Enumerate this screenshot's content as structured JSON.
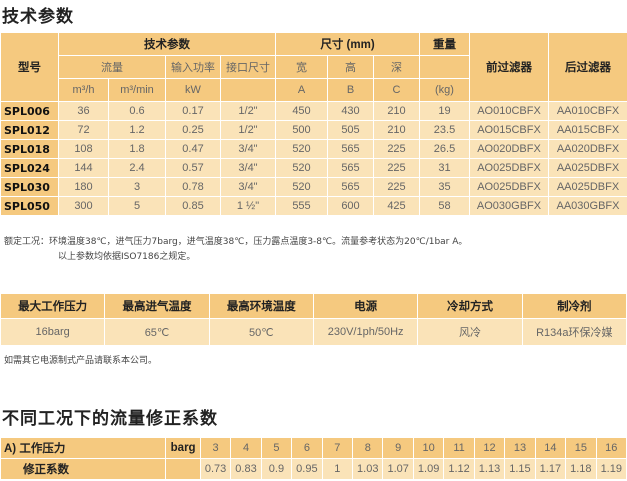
{
  "section1": {
    "title": "技术参数",
    "header": {
      "model": "型号",
      "tech": "技术参数",
      "dims": "尺寸 (mm)",
      "weight": "重量",
      "flow": "流量",
      "power": "输入功率",
      "conn": "接口尺寸",
      "width": "宽",
      "height": "高",
      "depth": "深",
      "prefilter": "前过滤器",
      "afterfilter": "后过滤器",
      "u_m3h": "m³/h",
      "u_m3min": "m³/min",
      "u_kw": "kW",
      "u_a": "A",
      "u_b": "B",
      "u_c": "C",
      "u_kg": "(kg)"
    },
    "rows": [
      [
        "SPL006",
        "36",
        "0.6",
        "0.17",
        "1/2\"",
        "450",
        "430",
        "210",
        "19",
        "AO010CBFX",
        "AA010CBFX"
      ],
      [
        "SPL012",
        "72",
        "1.2",
        "0.25",
        "1/2\"",
        "500",
        "505",
        "210",
        "23.5",
        "AO015CBFX",
        "AA015CBFX"
      ],
      [
        "SPL018",
        "108",
        "1.8",
        "0.47",
        "3/4\"",
        "520",
        "565",
        "225",
        "26.5",
        "AO020DBFX",
        "AA020DBFX"
      ],
      [
        "SPL024",
        "144",
        "2.4",
        "0.57",
        "3/4\"",
        "520",
        "565",
        "225",
        "31",
        "AO025DBFX",
        "AA025DBFX"
      ],
      [
        "SPL030",
        "180",
        "3",
        "0.78",
        "3/4\"",
        "520",
        "565",
        "225",
        "35",
        "AO025DBFX",
        "AA025DBFX"
      ],
      [
        "SPL050",
        "300",
        "5",
        "0.85",
        "1 ½\"",
        "555",
        "600",
        "425",
        "58",
        "AO030GBFX",
        "AA030GBFX"
      ]
    ],
    "note1": "额定工况：环境温度38℃，进气压力7barg，进气温度38℃，压力露点温度3-8℃。流量参考状态为20℃/1bar A。",
    "note2": "以上参数均依据ISO7186之规定。"
  },
  "section2": {
    "headers": [
      "最大工作压力",
      "最高进气温度",
      "最高环境温度",
      "电源",
      "冷却方式",
      "制冷剂"
    ],
    "values": [
      "16barg",
      "65℃",
      "50℃",
      "230V/1ph/50Hz",
      "风冷",
      "R134a环保冷媒"
    ],
    "note": "如需其它电源制式产品请联系本公司。"
  },
  "section3": {
    "title": "不同工况下的流量修正系数",
    "row1_label": "A) 工作压力",
    "row1_unit": "barg",
    "pressures": [
      "3",
      "4",
      "5",
      "6",
      "7",
      "8",
      "9",
      "10",
      "11",
      "12",
      "13",
      "14",
      "15",
      "16"
    ],
    "row2_label": "修正系数",
    "factors": [
      "0.73",
      "0.83",
      "0.9",
      "0.95",
      "1",
      "1.03",
      "1.07",
      "1.09",
      "1.12",
      "1.13",
      "1.15",
      "1.17",
      "1.18",
      "1.19"
    ]
  },
  "colors": {
    "header": "#f5c97f",
    "cell": "#fae3b8"
  }
}
